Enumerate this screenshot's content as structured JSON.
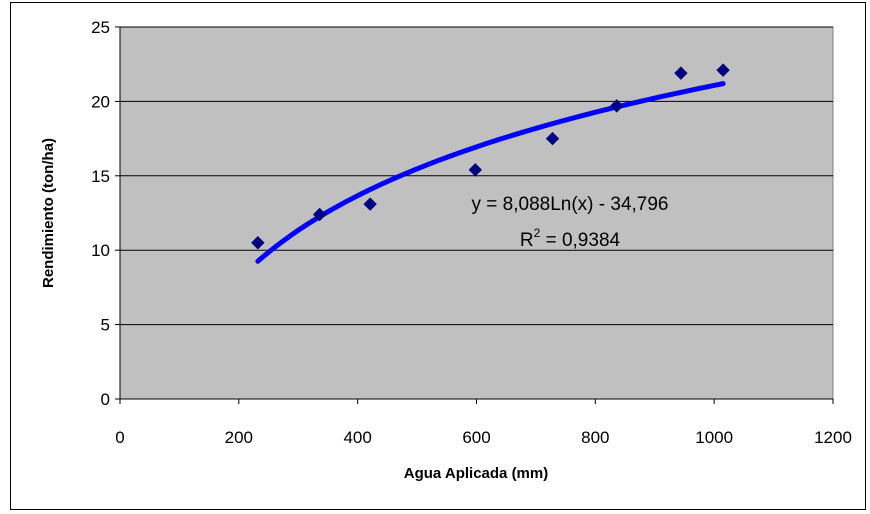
{
  "chart_data": {
    "type": "scatter",
    "title": "",
    "xlabel": "Agua Aplicada (mm)",
    "ylabel": "Rendimiento (ton/ha)",
    "xlim": [
      0,
      1200
    ],
    "ylim": [
      0,
      25
    ],
    "x_ticks": [
      "0",
      "200",
      "400",
      "600",
      "800",
      "1000",
      "1200"
    ],
    "y_ticks": [
      "0",
      "5",
      "10",
      "15",
      "20",
      "25"
    ],
    "grid": "horizontal",
    "legend": "none",
    "points": [
      {
        "x": 232,
        "y": 10.5
      },
      {
        "x": 336,
        "y": 12.4
      },
      {
        "x": 421,
        "y": 13.1
      },
      {
        "x": 598,
        "y": 15.4
      },
      {
        "x": 728,
        "y": 17.5
      },
      {
        "x": 836,
        "y": 19.7
      },
      {
        "x": 944,
        "y": 21.9
      },
      {
        "x": 1015,
        "y": 22.1
      }
    ],
    "trendline": {
      "type": "logarithmic",
      "a": 8.088,
      "b": -34.796,
      "x_start": 232,
      "x_end": 1015,
      "equation": "y = 8,088Ln(x) - 34,796",
      "r2_prefix": "R",
      "r2_sup": "2",
      "r2_value": " = 0,9384"
    },
    "colors": {
      "plot_bg": "#c0c0c0",
      "marker": "#000080",
      "trend": "#0000ff",
      "grid": "#000000"
    }
  }
}
